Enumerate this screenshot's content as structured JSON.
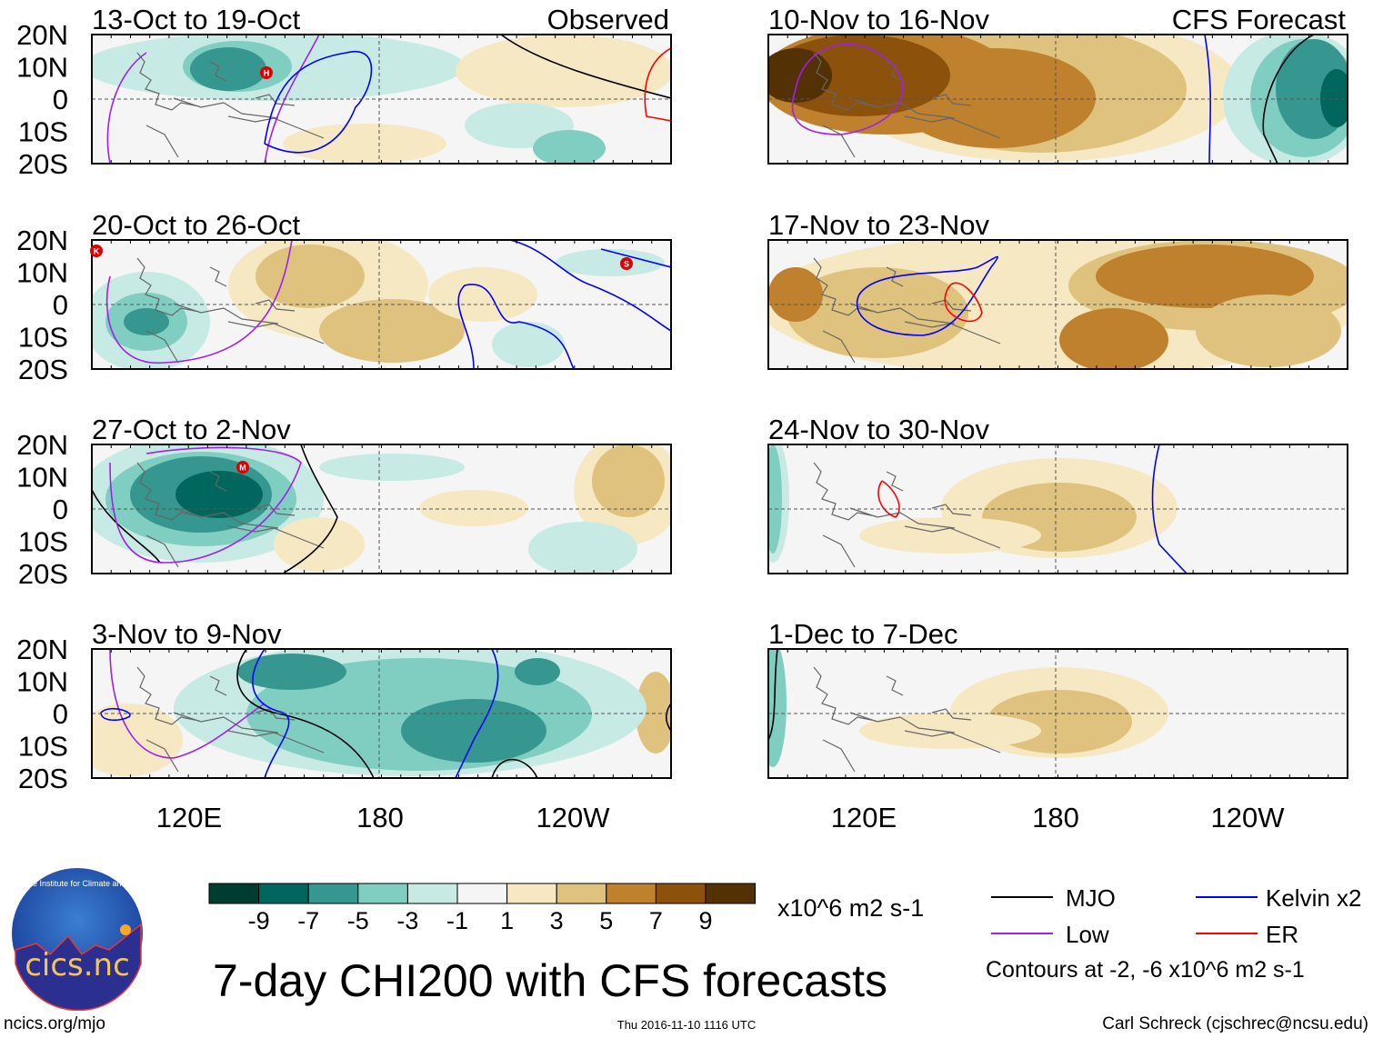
{
  "chart_data": {
    "type": "heatmap",
    "title": "7-day CHI200 with CFS forecasts",
    "units": "x10^6 m2 s-1",
    "columns": [
      {
        "label": "Observed",
        "panels": [
          "13-Oct to 19-Oct",
          "20-Oct to 26-Oct",
          "27-Oct to 2-Nov",
          "3-Nov to 9-Nov"
        ]
      },
      {
        "label": "CFS Forecast",
        "panels": [
          "10-Nov to 16-Nov",
          "17-Nov to 23-Nov",
          "24-Nov to 30-Nov",
          "1-Dec to 7-Dec"
        ]
      }
    ],
    "lat_ticks": [
      "20N",
      "10N",
      "0",
      "10S",
      "20S"
    ],
    "lon_ticks": [
      "120E",
      "180",
      "120W"
    ],
    "colorbar": {
      "levels": [
        "-9",
        "-7",
        "-5",
        "-3",
        "-1",
        "1",
        "3",
        "5",
        "7",
        "9"
      ],
      "colors": [
        "#003c30",
        "#01665e",
        "#35978f",
        "#80cdc1",
        "#c7eae5",
        "#f5f5f5",
        "#f6e8c3",
        "#dfc27d",
        "#bf812d",
        "#8c510a",
        "#543005"
      ]
    },
    "tc_markers": [
      "H",
      "K",
      "S",
      "M"
    ],
    "legend": [
      {
        "label": "MJO",
        "color": "#000000"
      },
      {
        "label": "Kelvin x2",
        "color": "#0000ff"
      },
      {
        "label": "Low",
        "color": "#a020f0"
      },
      {
        "label": "ER",
        "color": "#ff0000"
      }
    ],
    "contour_note": "Contours at -2, -6 x10^6 m2 s-1"
  },
  "footer": {
    "logo_text": "cics.nc",
    "logo_ring": "Cooperative Institute for Climate and Satellites",
    "url": "ncics.org/mjo",
    "timestamp": "Thu 2016-11-10 1116 UTC",
    "author": "Carl Schreck (cjschrec@ncsu.edu)"
  }
}
